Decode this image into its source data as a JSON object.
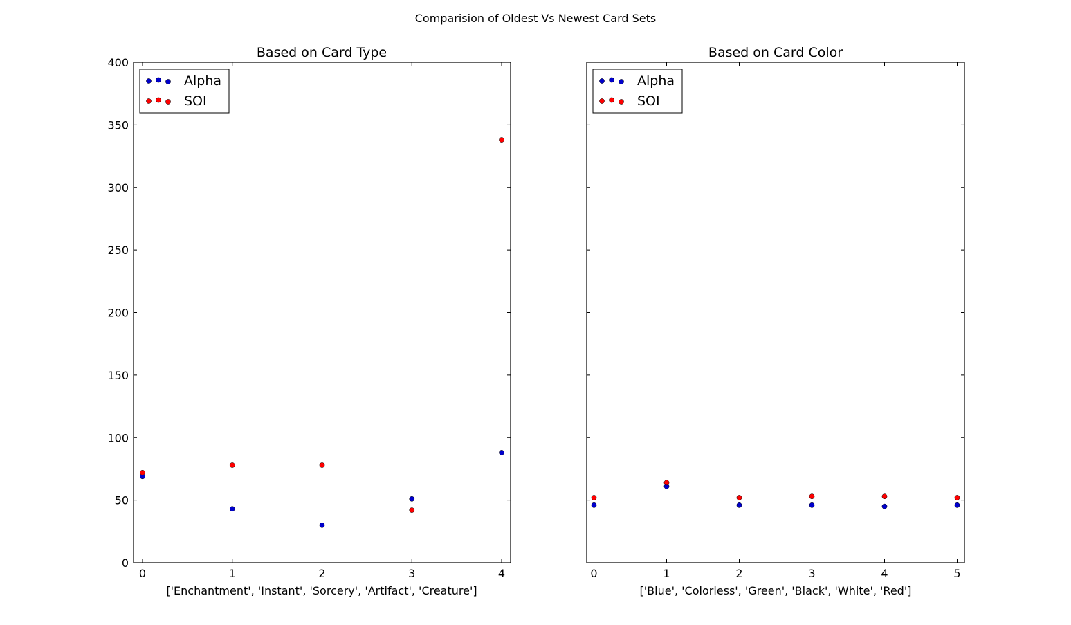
{
  "figure_title": "Comparision of Oldest Vs Newest Card Sets",
  "colors": {
    "Alpha": "#0000cc",
    "SOI": "#ff0000",
    "frame": "#000000"
  },
  "chart_data": [
    {
      "type": "scatter",
      "title": "Based on Card Type",
      "xlabel": "['Enchantment', 'Instant', 'Sorcery', 'Artifact', 'Creature']",
      "ylabel": "",
      "xlim": [
        -0.1,
        4.1
      ],
      "ylim": [
        0,
        400
      ],
      "xticks": [
        0,
        1,
        2,
        3,
        4
      ],
      "yticks": [
        0,
        50,
        100,
        150,
        200,
        250,
        300,
        350,
        400
      ],
      "grid": false,
      "legend": "top-left",
      "series": [
        {
          "name": "Alpha",
          "x": [
            0,
            1,
            2,
            3,
            4
          ],
          "y": [
            69,
            43,
            30,
            51,
            88
          ]
        },
        {
          "name": "SOI",
          "x": [
            0,
            1,
            2,
            3,
            4
          ],
          "y": [
            72,
            78,
            78,
            42,
            338
          ]
        }
      ]
    },
    {
      "type": "scatter",
      "title": "Based on Card Color",
      "xlabel": "['Blue', 'Colorless', 'Green', 'Black', 'White', 'Red']",
      "ylabel": "",
      "xlim": [
        -0.1,
        5.1
      ],
      "ylim": [
        0,
        400
      ],
      "xticks": [
        0,
        1,
        2,
        3,
        4,
        5
      ],
      "yticks": [
        0,
        50,
        100,
        150,
        200,
        250,
        300,
        350,
        400
      ],
      "yticklabels_shown": false,
      "grid": false,
      "legend": "top-left",
      "series": [
        {
          "name": "Alpha",
          "x": [
            0,
            1,
            2,
            3,
            4,
            5
          ],
          "y": [
            46,
            61,
            46,
            46,
            45,
            46
          ]
        },
        {
          "name": "SOI",
          "x": [
            0,
            1,
            2,
            3,
            4,
            5
          ],
          "y": [
            52,
            64,
            52,
            53,
            53,
            52
          ]
        }
      ]
    }
  ]
}
